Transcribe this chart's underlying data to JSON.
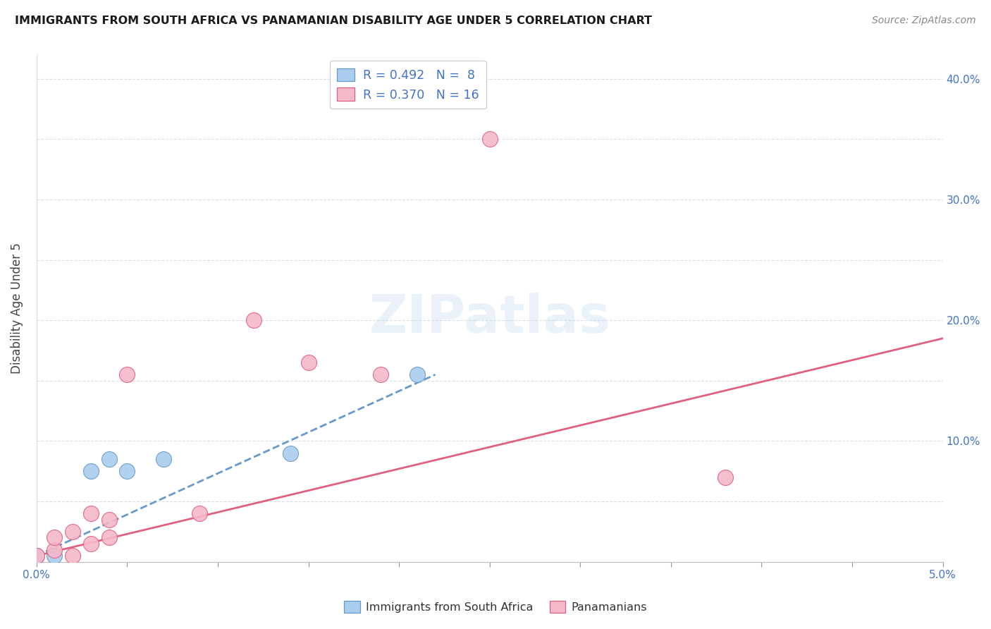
{
  "title": "IMMIGRANTS FROM SOUTH AFRICA VS PANAMANIAN DISABILITY AGE UNDER 5 CORRELATION CHART",
  "source": "Source: ZipAtlas.com",
  "ylabel": "Disability Age Under 5",
  "xmin": 0.0,
  "xmax": 0.05,
  "ymin": 0.0,
  "ymax": 0.42,
  "sa_scatter_x": [
    0.0,
    0.001,
    0.003,
    0.004,
    0.005,
    0.007,
    0.014,
    0.021
  ],
  "sa_scatter_y": [
    0.005,
    0.005,
    0.075,
    0.085,
    0.075,
    0.085,
    0.09,
    0.155
  ],
  "pan_scatter_x": [
    0.0,
    0.001,
    0.001,
    0.002,
    0.002,
    0.003,
    0.003,
    0.004,
    0.004,
    0.005,
    0.009,
    0.012,
    0.015,
    0.019,
    0.025,
    0.038
  ],
  "pan_scatter_y": [
    0.005,
    0.01,
    0.02,
    0.005,
    0.025,
    0.015,
    0.04,
    0.02,
    0.035,
    0.155,
    0.04,
    0.2,
    0.165,
    0.155,
    0.35,
    0.07
  ],
  "sa_trend_x0": 0.0,
  "sa_trend_x1": 0.022,
  "sa_trend_y0": 0.005,
  "sa_trend_y1": 0.155,
  "pan_trend_x0": 0.0,
  "pan_trend_x1": 0.05,
  "pan_trend_y0": 0.005,
  "pan_trend_y1": 0.185,
  "sa_color": "#aaccee",
  "sa_edge_color": "#6699cc",
  "pan_color": "#f5b8c8",
  "pan_edge_color": "#e06080",
  "trend_sa_color": "#6699cc",
  "trend_pan_color": "#e06080",
  "grid_color": "#d8dde8",
  "watermark": "ZIPatlas",
  "right_ytick_vals": [
    0.1,
    0.2,
    0.3,
    0.4
  ],
  "right_ytick_labels": [
    "10.0%",
    "20.0%",
    "30.0%",
    "40.0%"
  ],
  "xtick_positions": [
    0.0,
    0.005,
    0.01,
    0.015,
    0.02,
    0.025,
    0.03,
    0.035,
    0.04,
    0.045,
    0.05
  ],
  "legend_label_sa": "R = 0.492   N =  8",
  "legend_label_pan": "R = 0.370   N = 16",
  "bottom_label_sa": "Immigrants from South Africa",
  "bottom_label_pan": "Panamanians"
}
